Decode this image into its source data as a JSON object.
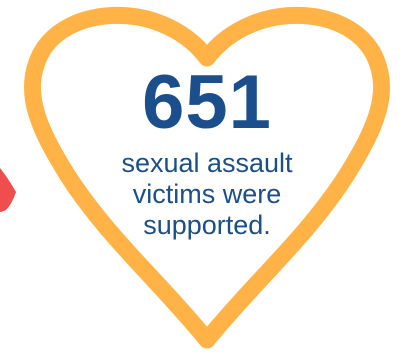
{
  "stat": {
    "number": "651",
    "caption_lines": [
      "sexual assault",
      "victims were",
      "supported."
    ]
  },
  "colors": {
    "heart_outline": "#ffb347",
    "text": "#1a4f8c",
    "accent_shape": "#f04e4e"
  },
  "icons": {
    "heart": "heart-outline-icon",
    "partial_shape": "red-decorative-shape"
  }
}
